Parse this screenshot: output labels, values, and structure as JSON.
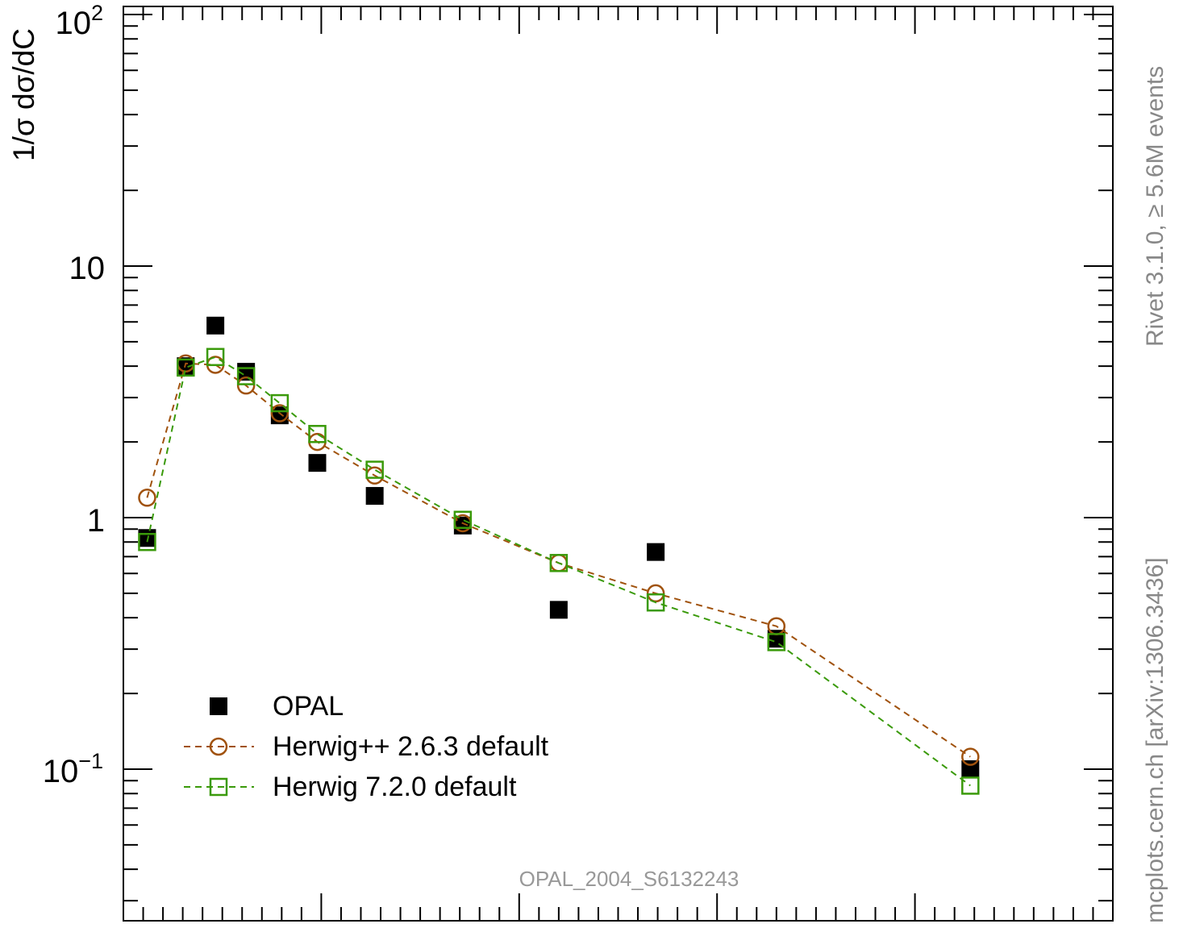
{
  "chart_data": {
    "type": "scatter",
    "title": "",
    "xlabel": "",
    "ylabel": "1/σ dσ/dC",
    "yscale": "log",
    "ylim": [
      0.03,
      100
    ],
    "xlim": [
      0.0,
      1.0
    ],
    "grid": false,
    "legend_position": "bottom-left",
    "y_tick_labels": [
      {
        "value": 100,
        "base": "10",
        "exp": "2"
      },
      {
        "value": 10,
        "base": "10",
        "exp": ""
      },
      {
        "value": 1,
        "base": "1",
        "exp": ""
      },
      {
        "value": 0.1,
        "base": "10",
        "exp": "−1"
      }
    ],
    "series": [
      {
        "name": "OPAL",
        "marker": "filled-square",
        "color": "#000000",
        "line": "none",
        "x": [
          0.024,
          0.063,
          0.093,
          0.124,
          0.158,
          0.196,
          0.254,
          0.343,
          0.44,
          0.538,
          0.66,
          0.856
        ],
        "y": [
          0.83,
          4.0,
          5.8,
          3.8,
          2.55,
          1.65,
          1.22,
          0.93,
          0.43,
          0.73,
          0.33,
          0.1
        ]
      },
      {
        "name": "Herwig++ 2.6.3 default",
        "marker": "open-circle",
        "color": "#a0520d",
        "line": "dashed",
        "x": [
          0.024,
          0.063,
          0.093,
          0.124,
          0.158,
          0.196,
          0.254,
          0.343,
          0.44,
          0.538,
          0.66,
          0.856
        ],
        "y": [
          1.2,
          4.1,
          4.05,
          3.35,
          2.6,
          2.0,
          1.47,
          0.95,
          0.66,
          0.5,
          0.37,
          0.112
        ]
      },
      {
        "name": "Herwig 7.2.0 default",
        "marker": "open-square",
        "color": "#3a9a0a",
        "line": "dashed",
        "x": [
          0.024,
          0.063,
          0.093,
          0.124,
          0.158,
          0.196,
          0.254,
          0.343,
          0.44,
          0.538,
          0.66,
          0.856
        ],
        "y": [
          0.8,
          3.95,
          4.35,
          3.65,
          2.85,
          2.15,
          1.55,
          0.98,
          0.66,
          0.46,
          0.32,
          0.086
        ]
      }
    ],
    "annotations": {
      "watermark": "OPAL_2004_S6132243",
      "side_top": "Rivet 3.1.0, ≥ 5.6M events",
      "side_bottom": "mcplots.cern.ch [arXiv:1306.3436]"
    }
  }
}
